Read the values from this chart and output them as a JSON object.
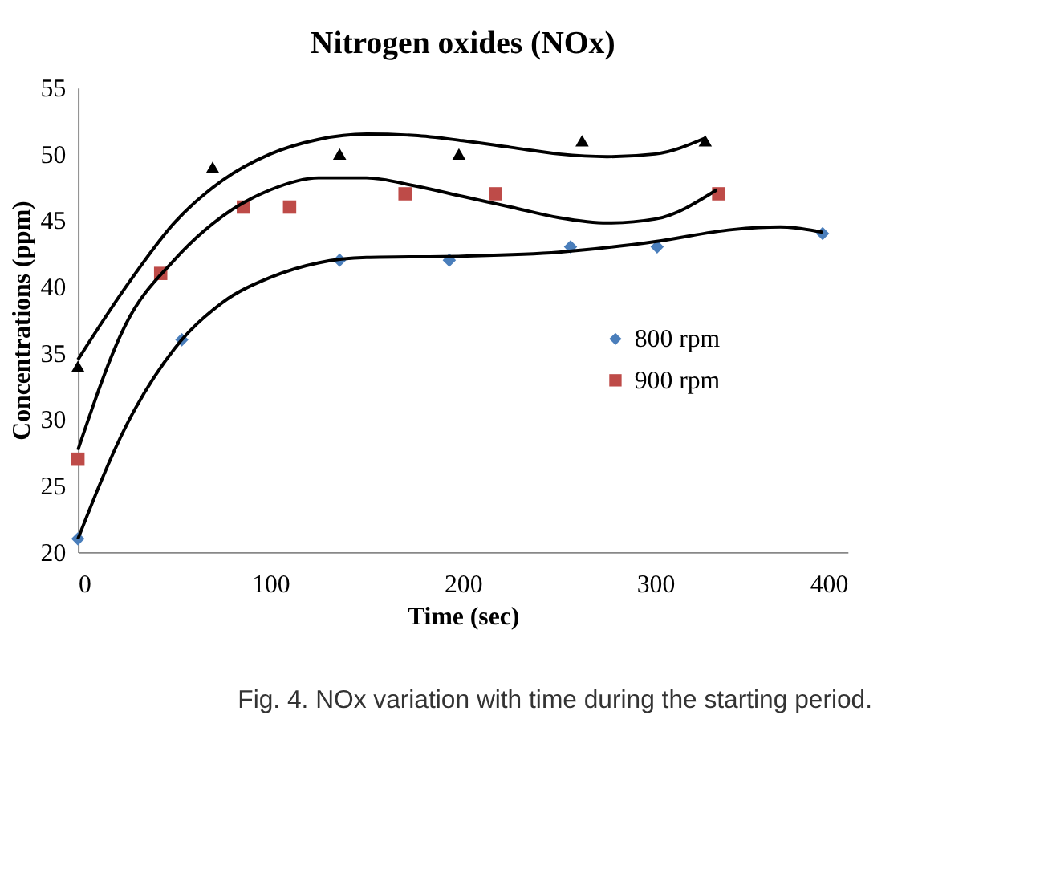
{
  "chart_data": {
    "type": "scatter",
    "title": "Nitrogen oxides (NOx)",
    "xlabel": "Time (sec)",
    "ylabel": "Concentrations (ppm)",
    "xlim": [
      0,
      400
    ],
    "xticks": [
      0,
      100,
      200,
      300,
      400
    ],
    "ylim": [
      20,
      55
    ],
    "yticks": [
      20,
      25,
      30,
      35,
      40,
      45,
      50,
      55
    ],
    "grid": false,
    "legend": "right",
    "series": [
      {
        "name": "800 rpm",
        "color": "#4a7ebb",
        "marker": "diamond",
        "x": [
          0,
          54,
          136,
          193,
          256,
          301,
          387
        ],
        "values": [
          21,
          36,
          42,
          42,
          43,
          43,
          44
        ]
      },
      {
        "name": "900 rpm",
        "color": "#be4b48",
        "marker": "square",
        "x": [
          0,
          43,
          86,
          110,
          170,
          217,
          333
        ],
        "values": [
          27,
          41,
          46,
          46,
          47,
          47,
          47
        ]
      },
      {
        "color": "#000000",
        "marker": "triangle",
        "x": [
          0,
          70,
          136,
          198,
          262,
          326
        ],
        "values": [
          34,
          49,
          50,
          50,
          51,
          51
        ]
      },
      {
        "type": "line",
        "color": "#000000",
        "marker": "none",
        "x": [
          0,
          25,
          50,
          75,
          100,
          125,
          150,
          200,
          250,
          300,
          340,
          365,
          387
        ],
        "values": [
          21,
          29.5,
          35.3,
          38.8,
          40.7,
          41.8,
          42.2,
          42.3,
          42.6,
          43.4,
          44.3,
          44.5,
          44.1
        ]
      },
      {
        "type": "line",
        "color": "#000000",
        "marker": "none",
        "x": [
          0,
          25,
          50,
          75,
          100,
          125,
          150,
          175,
          200,
          225,
          250,
          275,
          300,
          332
        ],
        "values": [
          27.7,
          37.2,
          42.0,
          45.3,
          47.3,
          48.2,
          48.2,
          47.6,
          46.8,
          46.0,
          45.2,
          44.8,
          45.1,
          47.3
        ]
      },
      {
        "type": "line",
        "color": "#000000",
        "marker": "none",
        "x": [
          0,
          25,
          50,
          75,
          100,
          125,
          150,
          175,
          200,
          225,
          250,
          275,
          300,
          326
        ],
        "values": [
          34.5,
          40,
          44.8,
          48.0,
          50.0,
          51.1,
          51.5,
          51.4,
          51.0,
          50.5,
          50.0,
          49.8,
          50.0,
          51.2
        ]
      }
    ],
    "annotations": [
      "Fig. 4. NOx variation with time during the starting period."
    ]
  }
}
